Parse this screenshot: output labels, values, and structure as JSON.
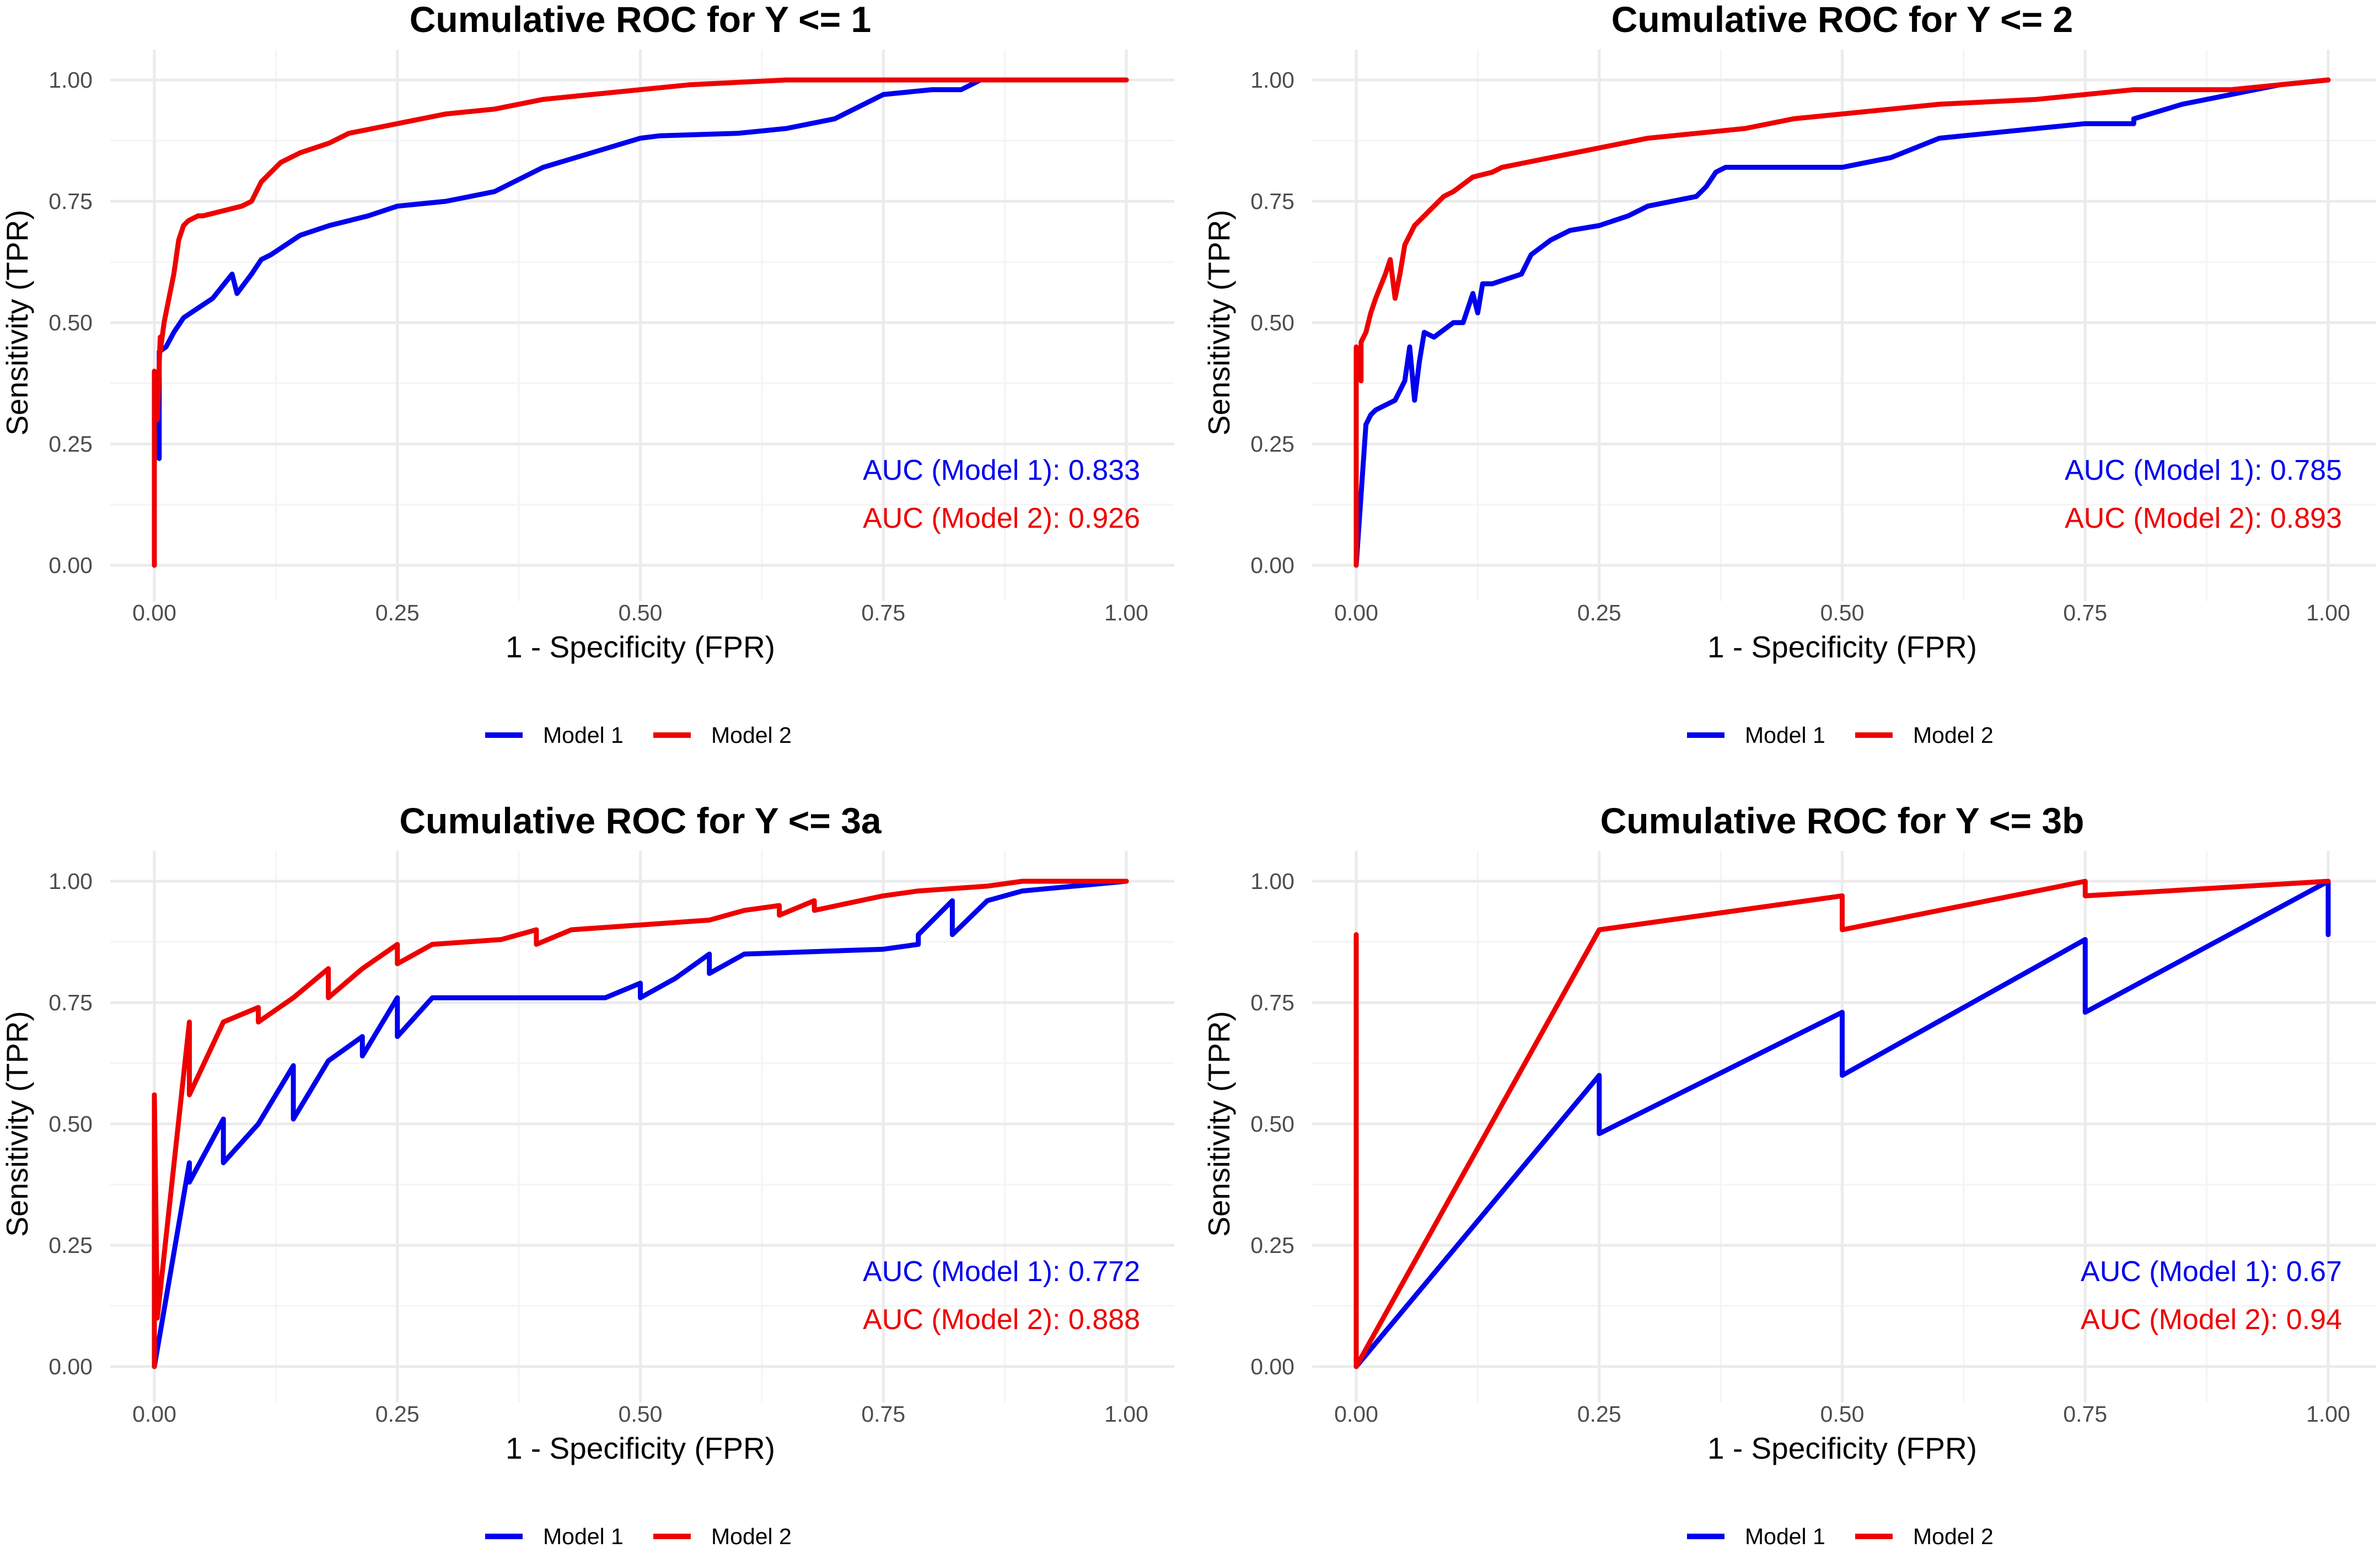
{
  "colors": {
    "model1": "#0000ee",
    "model2": "#ee0000",
    "grid_major": "#ebebeb",
    "grid_minor": "#f4f4f4"
  },
  "chart_data": [
    {
      "type": "line",
      "title": "Cumulative ROC for Y <= 1",
      "xlabel": "1 - Specificity (FPR)",
      "ylabel": "Sensitivity (TPR)",
      "xlim": [
        0,
        1
      ],
      "ylim": [
        0,
        1
      ],
      "xticks": [
        "0.00",
        "0.25",
        "0.50",
        "0.75",
        "1.00"
      ],
      "yticks": [
        "0.00",
        "0.25",
        "0.50",
        "0.75",
        "1.00"
      ],
      "legend": "bottom",
      "annotations": [
        "AUC (Model 1): 0.833",
        "AUC (Model 2): 0.926"
      ],
      "series": [
        {
          "name": "Model 1",
          "x": [
            0,
            0,
            0.005,
            0.005,
            0.012,
            0.02,
            0.03,
            0.045,
            0.06,
            0.08,
            0.085,
            0.1,
            0.11,
            0.12,
            0.15,
            0.18,
            0.2,
            0.22,
            0.25,
            0.3,
            0.35,
            0.38,
            0.4,
            0.45,
            0.5,
            0.52,
            0.6,
            0.65,
            0.7,
            0.75,
            0.8,
            0.83,
            0.84,
            0.85,
            1.0
          ],
          "y": [
            0,
            0.3,
            0.22,
            0.44,
            0.45,
            0.48,
            0.51,
            0.53,
            0.55,
            0.6,
            0.56,
            0.6,
            0.63,
            0.64,
            0.68,
            0.7,
            0.71,
            0.72,
            0.74,
            0.75,
            0.77,
            0.8,
            0.82,
            0.85,
            0.88,
            0.885,
            0.89,
            0.9,
            0.92,
            0.97,
            0.98,
            0.98,
            0.99,
            1.0,
            1.0
          ]
        },
        {
          "name": "Model 2",
          "x": [
            0,
            0,
            0.003,
            0.006,
            0.006,
            0.01,
            0.015,
            0.02,
            0.025,
            0.03,
            0.035,
            0.045,
            0.05,
            0.07,
            0.09,
            0.1,
            0.11,
            0.13,
            0.15,
            0.18,
            0.2,
            0.25,
            0.3,
            0.35,
            0.4,
            0.45,
            0.5,
            0.55,
            0.6,
            0.65,
            0.7,
            1.0
          ],
          "y": [
            0,
            0.4,
            0.3,
            0.47,
            0.44,
            0.5,
            0.55,
            0.6,
            0.67,
            0.7,
            0.71,
            0.72,
            0.72,
            0.73,
            0.74,
            0.75,
            0.79,
            0.83,
            0.85,
            0.87,
            0.89,
            0.91,
            0.93,
            0.94,
            0.96,
            0.97,
            0.98,
            0.99,
            0.995,
            1.0,
            1.0,
            1.0
          ]
        }
      ]
    },
    {
      "type": "line",
      "title": "Cumulative ROC for Y <= 2",
      "xlabel": "1 - Specificity (FPR)",
      "ylabel": "Sensitivity (TPR)",
      "xlim": [
        0,
        1
      ],
      "ylim": [
        0,
        1
      ],
      "xticks": [
        "0.00",
        "0.25",
        "0.50",
        "0.75",
        "1.00"
      ],
      "yticks": [
        "0.00",
        "0.25",
        "0.50",
        "0.75",
        "1.00"
      ],
      "legend": "bottom",
      "annotations": [
        "AUC (Model 1): 0.785",
        "AUC (Model 2): 0.893"
      ],
      "series": [
        {
          "name": "Model 1",
          "x": [
            0,
            0.01,
            0.015,
            0.02,
            0.03,
            0.04,
            0.05,
            0.055,
            0.06,
            0.065,
            0.07,
            0.08,
            0.1,
            0.11,
            0.12,
            0.125,
            0.13,
            0.14,
            0.17,
            0.18,
            0.2,
            0.22,
            0.25,
            0.28,
            0.3,
            0.35,
            0.36,
            0.37,
            0.38,
            0.42,
            0.5,
            0.55,
            0.6,
            0.65,
            0.7,
            0.75,
            0.8,
            0.8,
            0.85,
            0.9,
            0.95,
            1.0
          ],
          "y": [
            0,
            0.29,
            0.31,
            0.32,
            0.33,
            0.34,
            0.38,
            0.45,
            0.34,
            0.42,
            0.48,
            0.47,
            0.5,
            0.5,
            0.56,
            0.52,
            0.58,
            0.58,
            0.6,
            0.64,
            0.67,
            0.69,
            0.7,
            0.72,
            0.74,
            0.76,
            0.78,
            0.81,
            0.82,
            0.82,
            0.82,
            0.84,
            0.88,
            0.89,
            0.9,
            0.91,
            0.91,
            0.92,
            0.95,
            0.97,
            0.99,
            1.0
          ]
        },
        {
          "name": "Model 2",
          "x": [
            0,
            0,
            0.005,
            0.005,
            0.01,
            0.015,
            0.02,
            0.03,
            0.035,
            0.04,
            0.045,
            0.05,
            0.06,
            0.07,
            0.08,
            0.09,
            0.1,
            0.12,
            0.14,
            0.15,
            0.2,
            0.25,
            0.3,
            0.35,
            0.4,
            0.45,
            0.5,
            0.55,
            0.6,
            0.7,
            0.75,
            0.8,
            0.85,
            0.9,
            0.95,
            1.0
          ],
          "y": [
            0,
            0.45,
            0.38,
            0.46,
            0.48,
            0.52,
            0.55,
            0.6,
            0.63,
            0.55,
            0.6,
            0.66,
            0.7,
            0.72,
            0.74,
            0.76,
            0.77,
            0.8,
            0.81,
            0.82,
            0.84,
            0.86,
            0.88,
            0.89,
            0.9,
            0.92,
            0.93,
            0.94,
            0.95,
            0.96,
            0.97,
            0.98,
            0.98,
            0.98,
            0.99,
            1.0
          ]
        }
      ]
    },
    {
      "type": "line",
      "title": "Cumulative ROC for Y <= 3a",
      "xlabel": "1 - Specificity (FPR)",
      "ylabel": "Sensitivity (TPR)",
      "xlim": [
        0,
        1
      ],
      "ylim": [
        0,
        1
      ],
      "xticks": [
        "0.00",
        "0.25",
        "0.50",
        "0.75",
        "1.00"
      ],
      "yticks": [
        "0.00",
        "0.25",
        "0.50",
        "0.75",
        "1.00"
      ],
      "legend": "bottom",
      "annotations": [
        "AUC (Model 1): 0.772",
        "AUC (Model 2): 0.888"
      ],
      "series": [
        {
          "name": "Model 1",
          "x": [
            0,
            0.036,
            0.036,
            0.071,
            0.071,
            0.107,
            0.143,
            0.143,
            0.179,
            0.214,
            0.214,
            0.25,
            0.25,
            0.286,
            0.464,
            0.5,
            0.5,
            0.536,
            0.571,
            0.571,
            0.607,
            0.75,
            0.786,
            0.786,
            0.821,
            0.821,
            0.857,
            0.893,
            1.0
          ],
          "y": [
            0,
            0.42,
            0.38,
            0.51,
            0.42,
            0.5,
            0.62,
            0.51,
            0.63,
            0.68,
            0.64,
            0.76,
            0.68,
            0.76,
            0.76,
            0.79,
            0.76,
            0.8,
            0.85,
            0.81,
            0.85,
            0.86,
            0.87,
            0.89,
            0.96,
            0.89,
            0.96,
            0.98,
            1.0
          ]
        },
        {
          "name": "Model 2",
          "x": [
            0,
            0,
            0.003,
            0.036,
            0.036,
            0.071,
            0.107,
            0.107,
            0.143,
            0.179,
            0.179,
            0.214,
            0.25,
            0.25,
            0.286,
            0.357,
            0.393,
            0.393,
            0.429,
            0.5,
            0.571,
            0.607,
            0.643,
            0.643,
            0.679,
            0.679,
            0.75,
            0.786,
            0.857,
            0.893,
            1.0
          ],
          "y": [
            0,
            0.56,
            0.1,
            0.71,
            0.56,
            0.71,
            0.74,
            0.71,
            0.76,
            0.82,
            0.76,
            0.82,
            0.87,
            0.83,
            0.87,
            0.88,
            0.9,
            0.87,
            0.9,
            0.91,
            0.92,
            0.94,
            0.95,
            0.93,
            0.96,
            0.94,
            0.97,
            0.98,
            0.99,
            1.0,
            1.0
          ]
        }
      ]
    },
    {
      "type": "line",
      "title": "Cumulative ROC for Y <= 3b",
      "xlabel": "1 - Specificity (FPR)",
      "ylabel": "Sensitivity (TPR)",
      "xlim": [
        0,
        1
      ],
      "ylim": [
        0,
        1
      ],
      "xticks": [
        "0.00",
        "0.25",
        "0.50",
        "0.75",
        "1.00"
      ],
      "yticks": [
        "0.00",
        "0.25",
        "0.50",
        "0.75",
        "1.00"
      ],
      "legend": "bottom",
      "annotations": [
        "AUC (Model 1): 0.67",
        "AUC (Model 2): 0.94"
      ],
      "series": [
        {
          "name": "Model 1",
          "x": [
            0,
            0.25,
            0.25,
            0.5,
            0.5,
            0.75,
            0.75,
            1.0,
            1.0
          ],
          "y": [
            0,
            0.6,
            0.48,
            0.73,
            0.6,
            0.88,
            0.73,
            1.0,
            0.89
          ]
        },
        {
          "name": "Model 2",
          "x": [
            0,
            0,
            0,
            0.25,
            0.5,
            0.5,
            0.75,
            0.75,
            1.0
          ],
          "y": [
            0.89,
            0,
            0,
            0.9,
            0.97,
            0.9,
            1.0,
            0.97,
            1.0
          ]
        }
      ]
    }
  ]
}
